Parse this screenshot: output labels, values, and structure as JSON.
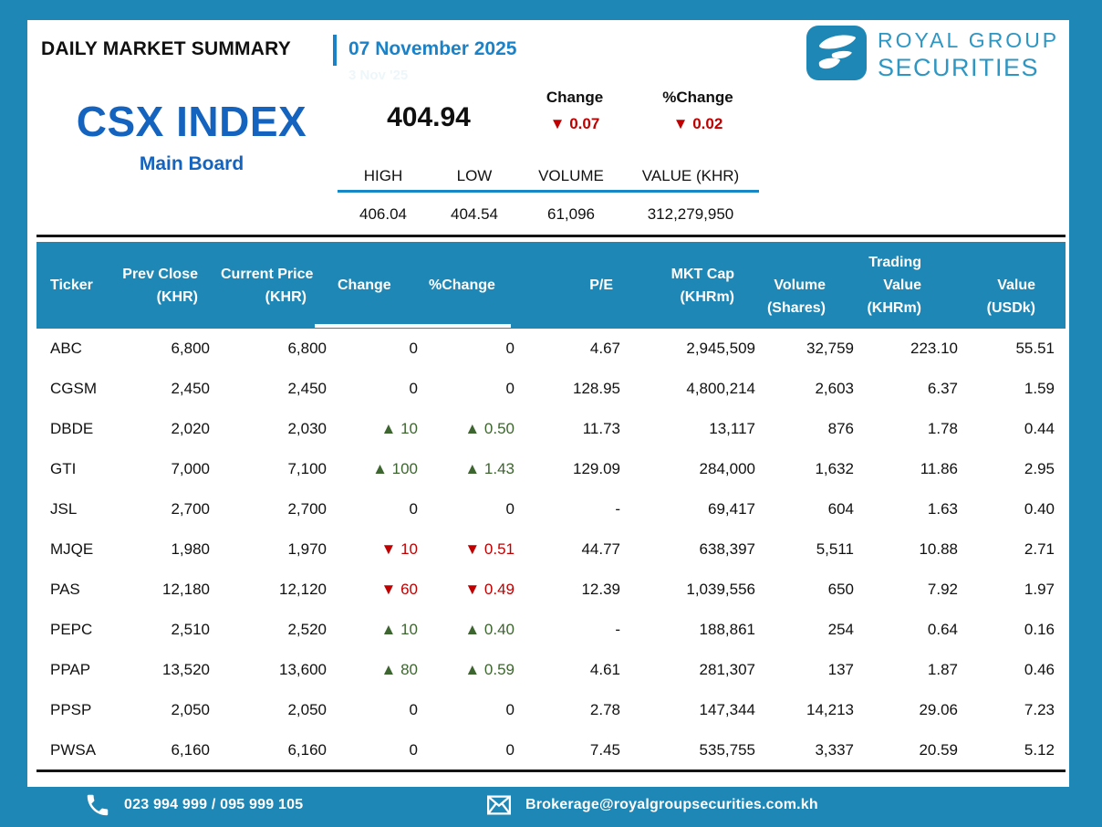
{
  "header": {
    "report_title": "DAILY MARKET SUMMARY",
    "report_date": "07 November 2025",
    "ghost_date": "3 Nov '25"
  },
  "brand": {
    "name_line1": "ROYAL GROUP",
    "name_line2": "SECURITIES",
    "logo_icon": "stylized-s-ribbon-icon"
  },
  "colors": {
    "teal": "#1e87b5",
    "deep_blue": "#1463be",
    "date_blue": "#1a82c8",
    "up_green": "#3d652f",
    "down_red": "#c00000"
  },
  "index": {
    "name": "CSX INDEX",
    "board": "Main Board",
    "value": "404.94",
    "change": {
      "label": "Change",
      "dir": "down",
      "value": "0.07"
    },
    "pct_change": {
      "label": "%Change",
      "dir": "down",
      "value": "0.02"
    },
    "stats_headers": [
      "HIGH",
      "LOW",
      "VOLUME",
      "VALUE (KHR)"
    ],
    "stats_values": [
      "406.04",
      "404.54",
      "61,096",
      "312,279,950"
    ]
  },
  "table": {
    "group_header": "Trading",
    "columns": [
      {
        "key": "ticker",
        "lines": [
          "Ticker"
        ]
      },
      {
        "key": "prev-close",
        "lines": [
          "Prev Close",
          "(KHR)"
        ]
      },
      {
        "key": "current-price",
        "lines": [
          "Current Price",
          "(KHR)"
        ]
      },
      {
        "key": "change",
        "lines": [
          "Change"
        ]
      },
      {
        "key": "pct-change",
        "lines": [
          "%Change"
        ]
      },
      {
        "key": "pe",
        "lines": [
          "P/E"
        ]
      },
      {
        "key": "mkt-cap",
        "lines": [
          "MKT Cap",
          "(KHRm)"
        ]
      },
      {
        "key": "volume",
        "lines": [
          "",
          "Volume",
          "(Shares)"
        ]
      },
      {
        "key": "value-khrm",
        "lines": [
          "Trading",
          "Value",
          "(KHRm)"
        ]
      },
      {
        "key": "value-usdk",
        "lines": [
          "",
          "Value",
          "(USDk)"
        ]
      }
    ],
    "rows": [
      {
        "ticker": "ABC",
        "prev_close": "6,800",
        "current_price": "6,800",
        "change": {
          "dir": "flat",
          "value": "0"
        },
        "pct_change": {
          "dir": "flat",
          "value": "0"
        },
        "pe": "4.67",
        "mkt_cap": "2,945,509",
        "volume": "32,759",
        "value_khrm": "223.10",
        "value_usdk": "55.51"
      },
      {
        "ticker": "CGSM",
        "prev_close": "2,450",
        "current_price": "2,450",
        "change": {
          "dir": "flat",
          "value": "0"
        },
        "pct_change": {
          "dir": "flat",
          "value": "0"
        },
        "pe": "128.95",
        "mkt_cap": "4,800,214",
        "volume": "2,603",
        "value_khrm": "6.37",
        "value_usdk": "1.59"
      },
      {
        "ticker": "DBDE",
        "prev_close": "2,020",
        "current_price": "2,030",
        "change": {
          "dir": "up",
          "value": "10"
        },
        "pct_change": {
          "dir": "up",
          "value": "0.50"
        },
        "pe": "11.73",
        "mkt_cap": "13,117",
        "volume": "876",
        "value_khrm": "1.78",
        "value_usdk": "0.44"
      },
      {
        "ticker": "GTI",
        "prev_close": "7,000",
        "current_price": "7,100",
        "change": {
          "dir": "up",
          "value": "100"
        },
        "pct_change": {
          "dir": "up",
          "value": "1.43"
        },
        "pe": "129.09",
        "mkt_cap": "284,000",
        "volume": "1,632",
        "value_khrm": "11.86",
        "value_usdk": "2.95"
      },
      {
        "ticker": "JSL",
        "prev_close": "2,700",
        "current_price": "2,700",
        "change": {
          "dir": "flat",
          "value": "0"
        },
        "pct_change": {
          "dir": "flat",
          "value": "0"
        },
        "pe": "-",
        "mkt_cap": "69,417",
        "volume": "604",
        "value_khrm": "1.63",
        "value_usdk": "0.40"
      },
      {
        "ticker": "MJQE",
        "prev_close": "1,980",
        "current_price": "1,970",
        "change": {
          "dir": "down",
          "value": "10"
        },
        "pct_change": {
          "dir": "down",
          "value": "0.51"
        },
        "pe": "44.77",
        "mkt_cap": "638,397",
        "volume": "5,511",
        "value_khrm": "10.88",
        "value_usdk": "2.71"
      },
      {
        "ticker": "PAS",
        "prev_close": "12,180",
        "current_price": "12,120",
        "change": {
          "dir": "down",
          "value": "60"
        },
        "pct_change": {
          "dir": "down",
          "value": "0.49"
        },
        "pe": "12.39",
        "mkt_cap": "1,039,556",
        "volume": "650",
        "value_khrm": "7.92",
        "value_usdk": "1.97"
      },
      {
        "ticker": "PEPC",
        "prev_close": "2,510",
        "current_price": "2,520",
        "change": {
          "dir": "up",
          "value": "10"
        },
        "pct_change": {
          "dir": "up",
          "value": "0.40"
        },
        "pe": "-",
        "mkt_cap": "188,861",
        "volume": "254",
        "value_khrm": "0.64",
        "value_usdk": "0.16"
      },
      {
        "ticker": "PPAP",
        "prev_close": "13,520",
        "current_price": "13,600",
        "change": {
          "dir": "up",
          "value": "80"
        },
        "pct_change": {
          "dir": "up",
          "value": "0.59"
        },
        "pe": "4.61",
        "mkt_cap": "281,307",
        "volume": "137",
        "value_khrm": "1.87",
        "value_usdk": "0.46"
      },
      {
        "ticker": "PPSP",
        "prev_close": "2,050",
        "current_price": "2,050",
        "change": {
          "dir": "flat",
          "value": "0"
        },
        "pct_change": {
          "dir": "flat",
          "value": "0"
        },
        "pe": "2.78",
        "mkt_cap": "147,344",
        "volume": "14,213",
        "value_khrm": "29.06",
        "value_usdk": "7.23"
      },
      {
        "ticker": "PWSA",
        "prev_close": "6,160",
        "current_price": "6,160",
        "change": {
          "dir": "flat",
          "value": "0"
        },
        "pct_change": {
          "dir": "flat",
          "value": "0"
        },
        "pe": "7.45",
        "mkt_cap": "535,755",
        "volume": "3,337",
        "value_khrm": "20.59",
        "value_usdk": "5.12"
      }
    ]
  },
  "footer": {
    "phone": "023 994 999 / 095 999 105",
    "email": "Brokerage@royalgroupsecurities.com.kh"
  }
}
